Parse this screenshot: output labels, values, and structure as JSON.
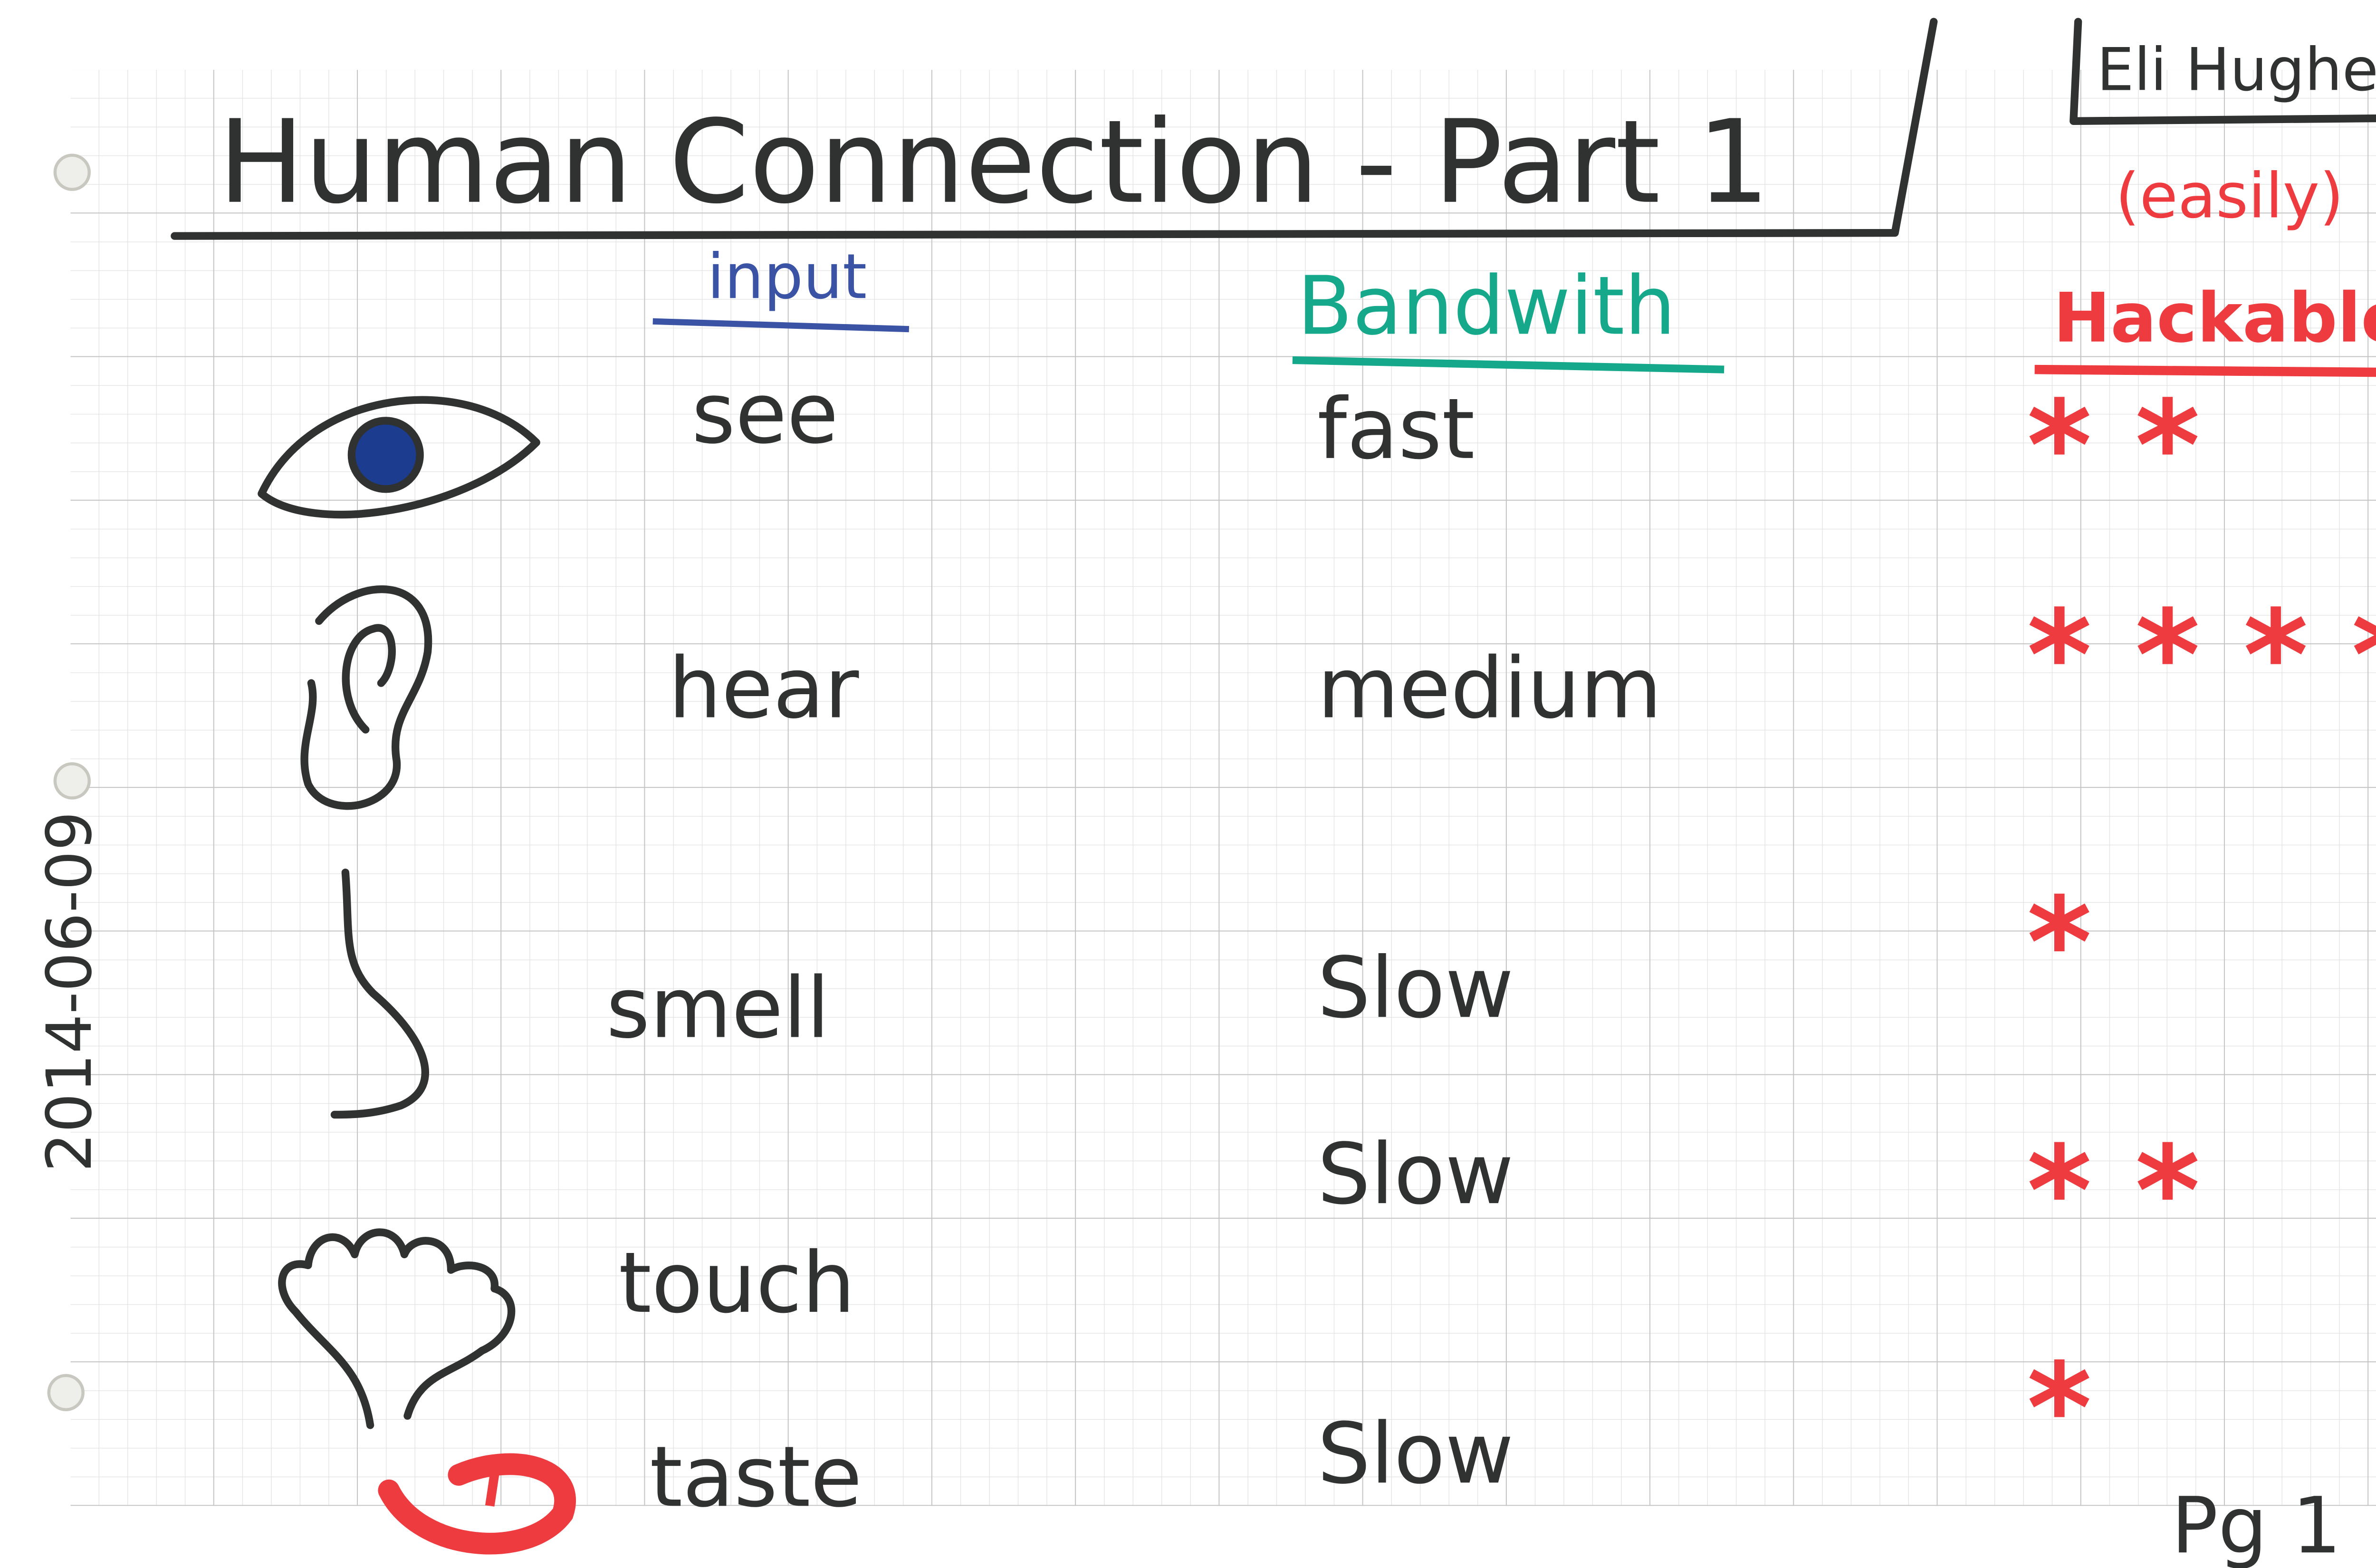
{
  "header": {
    "title": "Human Connection - Part 1",
    "author": "Eli Hughes",
    "date": "2014-06-09"
  },
  "table": {
    "columns": [
      {
        "label": "input"
      },
      {
        "label": "Bandwith"
      },
      {
        "label": "Hackable",
        "qualifier": "(easily)"
      }
    ],
    "rows": [
      [
        "see",
        "fast",
        "* *"
      ],
      [
        "hear",
        "medium",
        "* * * *"
      ],
      [
        "smell",
        "Slow",
        "*"
      ],
      [
        "touch",
        "Slow",
        "* *"
      ],
      [
        "taste",
        "Slow",
        "*"
      ]
    ]
  },
  "footer": {
    "page": "Pg 1"
  }
}
